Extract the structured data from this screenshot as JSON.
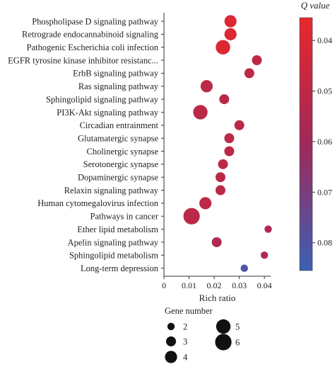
{
  "chart_data": {
    "type": "scatter",
    "title": "",
    "xlabel": "Rich ratio",
    "ylabel": "",
    "xlim": [
      0,
      0.0425
    ],
    "xticks": [
      0,
      0.01,
      0.02,
      0.03,
      0.04
    ],
    "xtick_labels": [
      "0",
      "0.01",
      "0.02",
      "0.03",
      "0.04"
    ],
    "grid": false,
    "categories": [
      "Phospholipase D signaling pathway",
      "Retrograde endocannabinoid signaling",
      "Pathogenic Escherichia coli infection",
      "EGFR tyrosine kinase inhibitor resistanc...",
      "ErbB signaling pathway",
      "Ras signaling pathway",
      "Sphingolipid signaling pathway",
      "PI3K-Akt signaling pathway",
      "Circadian entrainment",
      "Glutamatergic synapse",
      "Cholinergic synapse",
      "Serotonergic synapse",
      "Dopaminergic synapse",
      "Relaxin signaling pathway",
      "Human cytomegalovirus infection",
      "Pathways in cancer",
      "Ether lipid metabolism",
      "Apelin signaling pathway",
      "Sphingolipid metabolism",
      "Long-term depression"
    ],
    "points": [
      {
        "category": "Phospholipase D signaling pathway",
        "x": 0.0265,
        "gene_number": 4,
        "q_value": 0.04
      },
      {
        "category": "Retrograde endocannabinoid signaling",
        "x": 0.0265,
        "gene_number": 4,
        "q_value": 0.04
      },
      {
        "category": "Pathogenic Escherichia coli infection",
        "x": 0.0235,
        "gene_number": 5,
        "q_value": 0.04
      },
      {
        "category": "EGFR tyrosine kinase inhibitor resistanc...",
        "x": 0.037,
        "gene_number": 3,
        "q_value": 0.05
      },
      {
        "category": "ErbB signaling pathway",
        "x": 0.034,
        "gene_number": 3,
        "q_value": 0.05
      },
      {
        "category": "Ras signaling pathway",
        "x": 0.017,
        "gene_number": 4,
        "q_value": 0.051
      },
      {
        "category": "Sphingolipid signaling pathway",
        "x": 0.024,
        "gene_number": 3,
        "q_value": 0.051
      },
      {
        "category": "PI3K-Akt signaling pathway",
        "x": 0.0145,
        "gene_number": 5,
        "q_value": 0.051
      },
      {
        "category": "Circadian entrainment",
        "x": 0.03,
        "gene_number": 3,
        "q_value": 0.051
      },
      {
        "category": "Glutamatergic synapse",
        "x": 0.026,
        "gene_number": 3,
        "q_value": 0.051
      },
      {
        "category": "Cholinergic synapse",
        "x": 0.026,
        "gene_number": 3,
        "q_value": 0.051
      },
      {
        "category": "Serotonergic synapse",
        "x": 0.0235,
        "gene_number": 3,
        "q_value": 0.051
      },
      {
        "category": "Dopaminergic synapse",
        "x": 0.0225,
        "gene_number": 3,
        "q_value": 0.051
      },
      {
        "category": "Relaxin signaling pathway",
        "x": 0.0225,
        "gene_number": 3,
        "q_value": 0.051
      },
      {
        "category": "Human cytomegalovirus infection",
        "x": 0.0165,
        "gene_number": 4,
        "q_value": 0.051
      },
      {
        "category": "Pathways in cancer",
        "x": 0.011,
        "gene_number": 6,
        "q_value": 0.051
      },
      {
        "category": "Ether lipid metabolism",
        "x": 0.0415,
        "gene_number": 2,
        "q_value": 0.055
      },
      {
        "category": "Apelin signaling pathway",
        "x": 0.021,
        "gene_number": 3,
        "q_value": 0.055
      },
      {
        "category": "Sphingolipid metabolism",
        "x": 0.04,
        "gene_number": 2,
        "q_value": 0.055
      },
      {
        "category": "Long-term depression",
        "x": 0.032,
        "gene_number": 2,
        "q_value": 0.081
      }
    ],
    "colorbar": {
      "title": "Q value",
      "range": [
        0.0355,
        0.0855
      ],
      "ticks": [
        0.04,
        0.05,
        0.06,
        0.07,
        0.08
      ],
      "tick_labels": [
        "0.04",
        "0.05",
        "0.06",
        "0.07",
        "0.08"
      ],
      "color_low": "#e8282b",
      "color_mid": "#a0295a",
      "color_high": "#3b60b5"
    },
    "size_legend": {
      "title": "Gene number",
      "entries": [
        2,
        3,
        4,
        5,
        6
      ],
      "entry_labels": [
        "2",
        "3",
        "4",
        "5",
        "6"
      ]
    }
  }
}
